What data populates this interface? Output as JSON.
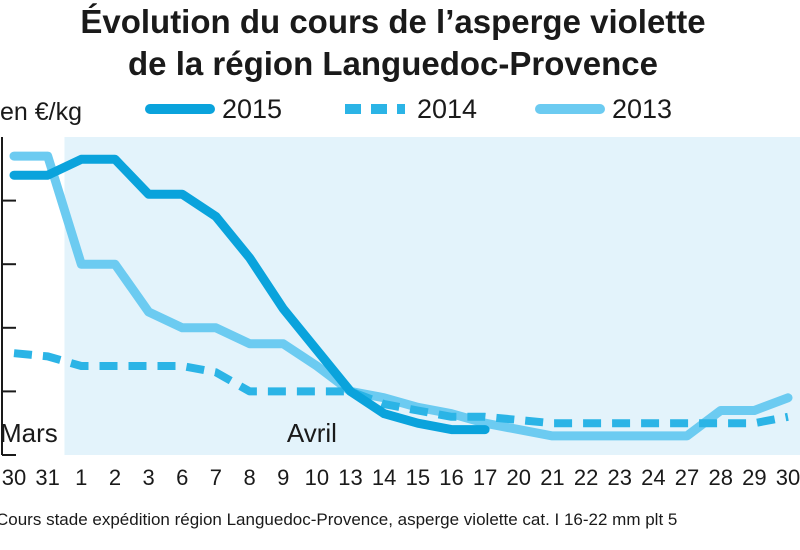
{
  "chart_data": {
    "type": "line",
    "title": "Évolution du cours de l’asperge violette de la région Languedoc-Provence",
    "title_lines": [
      "Évolution du cours de l’asperge violette",
      "de la région Languedoc-Provence"
    ],
    "ylabel": "en €/kg",
    "note": "Cours stade expédition région Languedoc-Provence, asperge violette cat. I 16-22 mm plt 5",
    "months": [
      {
        "label": "Mars",
        "at": 0
      },
      {
        "label": "Avril",
        "at": 9
      }
    ],
    "categories": [
      "30",
      "31",
      "1",
      "2",
      "3",
      "6",
      "7",
      "8",
      "9",
      "10",
      "13",
      "14",
      "15",
      "16",
      "17",
      "20",
      "21",
      "22",
      "23",
      "24",
      "27",
      "28",
      "29",
      "30"
    ],
    "ylim": [
      0,
      10
    ],
    "grid": false,
    "legend_position": "top",
    "highlight_from_index": 1.5,
    "colors": {
      "bg_band": "#e3f3fb",
      "c2015": "#0aa3dc",
      "c2014": "#2bb4e6",
      "c2013": "#6ccbf1",
      "axis": "#1a1a1a"
    },
    "series": [
      {
        "name": "2015",
        "style": "solid",
        "color": "#0aa3dc",
        "values": [
          8.8,
          8.8,
          9.3,
          9.3,
          8.2,
          8.2,
          7.5,
          6.2,
          4.6,
          3.3,
          2.0,
          1.3,
          1.0,
          0.8,
          0.8,
          null,
          null,
          null,
          null,
          null,
          null,
          null,
          null,
          null
        ]
      },
      {
        "name": "2014",
        "style": "dashed",
        "color": "#2bb4e6",
        "values": [
          3.2,
          3.1,
          2.8,
          2.8,
          2.8,
          2.8,
          2.6,
          2.0,
          2.0,
          2.0,
          2.0,
          1.6,
          1.4,
          1.2,
          1.2,
          1.1,
          1.0,
          1.0,
          1.0,
          1.0,
          1.0,
          1.0,
          1.0,
          1.2
        ]
      },
      {
        "name": "2013",
        "style": "solid",
        "color": "#6ccbf1",
        "values": [
          9.4,
          9.4,
          6.0,
          6.0,
          4.5,
          4.0,
          4.0,
          3.5,
          3.5,
          2.8,
          2.0,
          1.8,
          1.5,
          1.3,
          1.0,
          0.8,
          0.6,
          0.6,
          0.6,
          0.6,
          0.6,
          1.4,
          1.4,
          1.8
        ]
      }
    ]
  }
}
